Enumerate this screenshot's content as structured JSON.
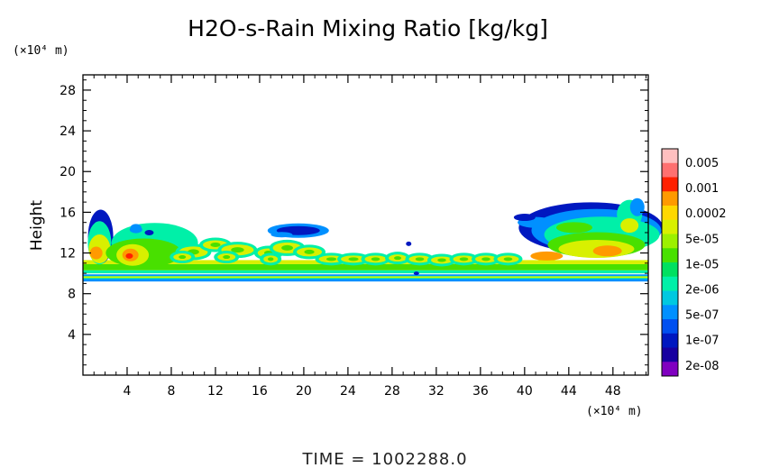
{
  "chart_data": {
    "type": "heatmap",
    "title": "H2O-s-Rain Mixing Ratio [kg/kg]",
    "ylabel": "Height",
    "x_unit": "(×10⁴ m)",
    "y_unit": "(×10⁴ m)",
    "xlim": [
      0,
      51.2
    ],
    "ylim": [
      0,
      29.5
    ],
    "x_ticks": [
      4,
      8,
      12,
      16,
      20,
      24,
      28,
      32,
      36,
      40,
      44,
      48
    ],
    "y_ticks": [
      4,
      8,
      12,
      16,
      20,
      24,
      28
    ],
    "colorbar": {
      "labels": [
        "0.005",
        "0.001",
        "0.0002",
        "5e-05",
        "1e-05",
        "2e-06",
        "5e-07",
        "1e-07",
        "2e-08"
      ],
      "colors_top_to_bottom": [
        "#ffc0c0",
        "#ff7070",
        "#ff2000",
        "#ff9a00",
        "#ffd800",
        "#d8f000",
        "#9cf000",
        "#48e000",
        "#00e060",
        "#00f0a8",
        "#00c8e0",
        "#0090ff",
        "#0050f0",
        "#0018c0",
        "#1800a0",
        "#8000c0"
      ]
    },
    "field_bands": [
      {
        "x": [
          0,
          51.2
        ],
        "y": [
          9.3,
          9.9
        ],
        "level": "2e-06"
      },
      {
        "x": [
          0,
          51.2
        ],
        "y": [
          10.0,
          11.5
        ],
        "level": "1e-05"
      },
      {
        "x": [
          0,
          8
        ],
        "y": [
          11.5,
          15.5
        ],
        "level": "5e-05"
      },
      {
        "x": [
          16.5,
          23
        ],
        "y": [
          13.4,
          14.9
        ],
        "level": "5e-07"
      },
      {
        "x": [
          40,
          51.2
        ],
        "y": [
          11.5,
          17.0
        ],
        "level": "5e-05"
      },
      {
        "x": [
          2,
          6
        ],
        "y": [
          11.2,
          13.0
        ],
        "level": "0.0002"
      },
      {
        "x": [
          44,
          50
        ],
        "y": [
          11.0,
          13.5
        ],
        "level": "0.0002"
      }
    ],
    "footer": "TIME  =  1002288.0"
  }
}
